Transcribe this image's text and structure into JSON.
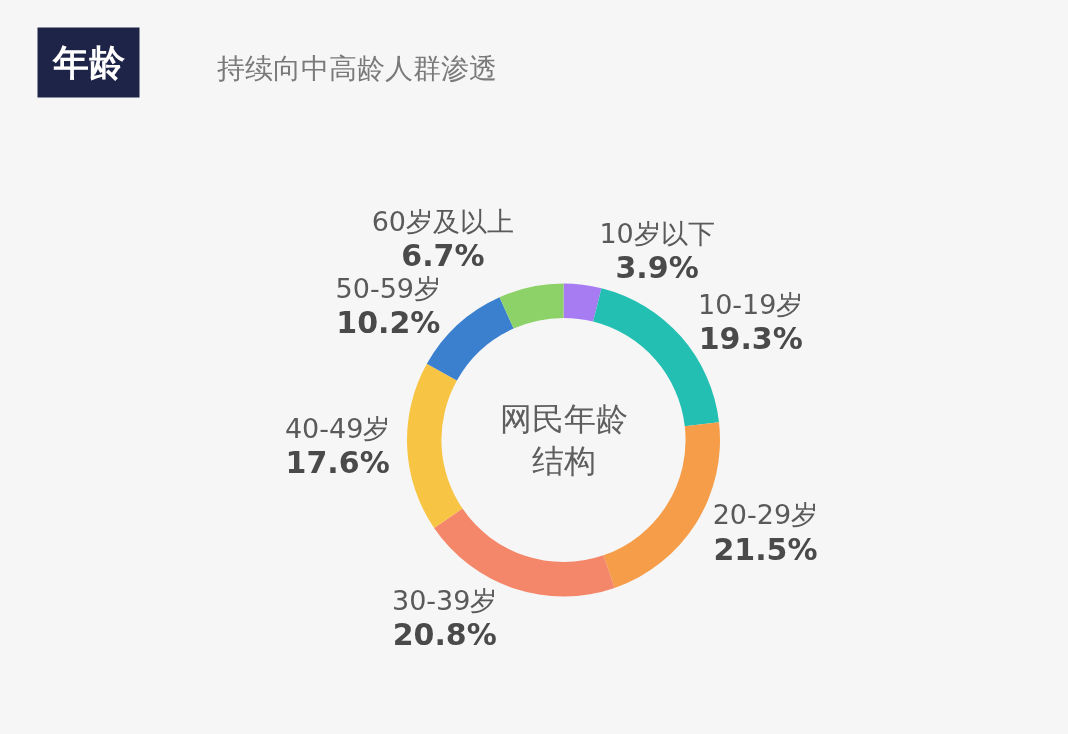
{
  "chart_data": {
    "type": "donut",
    "title": "年龄",
    "subtitle": "持续向中高龄人群渗透",
    "categories": [
      "10岁以下",
      "10-19岁",
      "20-29岁",
      "30-39岁",
      "40-49岁",
      "50-59岁",
      "60岁及以上"
    ],
    "values": [
      3.9,
      19.3,
      21.5,
      20.8,
      17.6,
      10.2,
      6.7
    ],
    "value_labels": [
      "3.9%",
      "19.3%",
      "21.5%",
      "20.8%",
      "17.6%",
      "10.2%",
      "6.7%"
    ],
    "colors": [
      "#a77bf2",
      "#22bfb2",
      "#f59d48",
      "#f4866a",
      "#f8c444",
      "#3b7fcf",
      "#8dd269"
    ],
    "annotations": [
      "网民年龄结构"
    ],
    "legend": false
  }
}
